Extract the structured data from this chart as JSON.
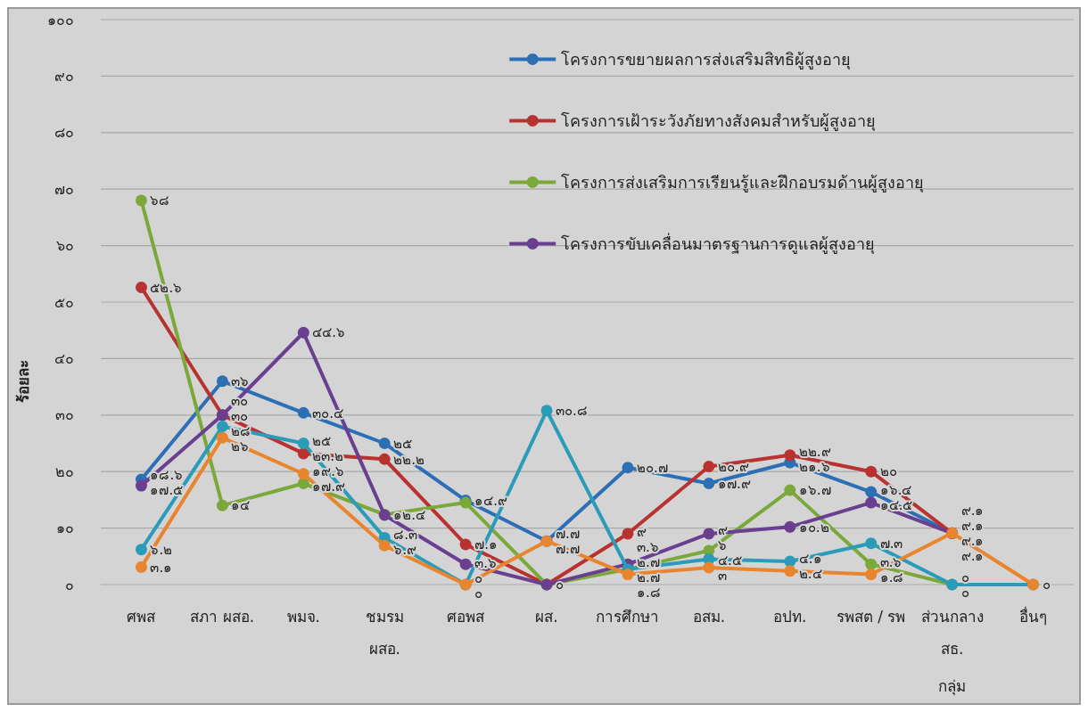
{
  "chart_data": {
    "type": "line",
    "ylabel": "ร้อยละ",
    "xlabel": "กลุ่ม",
    "categories": [
      "ศพส",
      "สภา ผสอ.",
      "พมจ.",
      "ชมรม ผสอ.",
      "ศอพส",
      "ผส.",
      "การศึกษา",
      "อสม.",
      "อปท.",
      "รพสต / รพ",
      "ส่วนกลาง สธ.",
      "อื่นๆ"
    ],
    "ylim": [
      0,
      100
    ],
    "yticks": [
      {
        "value": 0,
        "label": "๐"
      },
      {
        "value": 10,
        "label": "๑๐"
      },
      {
        "value": 20,
        "label": "๒๐"
      },
      {
        "value": 30,
        "label": "๓๐"
      },
      {
        "value": 40,
        "label": "๔๐"
      },
      {
        "value": 50,
        "label": "๕๐"
      },
      {
        "value": 60,
        "label": "๖๐"
      },
      {
        "value": 70,
        "label": "๗๐"
      },
      {
        "value": 80,
        "label": "๘๐"
      },
      {
        "value": 90,
        "label": "๙๐"
      },
      {
        "value": 100,
        "label": "๑๐๐"
      }
    ],
    "grid": "y",
    "legend": "top right",
    "marker": "circle",
    "series": [
      {
        "name": "โครงการขยายผลการส่งเสริมสิทธิผู้สูงอายุ",
        "color": "#2c6fb5",
        "values": [
          18.6,
          36,
          30.4,
          25,
          14.9,
          7.7,
          20.7,
          17.9,
          21.6,
          16.4,
          9.1,
          null
        ],
        "value_labels": [
          "๑๘.๖",
          "๓๖",
          "๓๐.๔",
          "๒๕",
          "๑๔.๙",
          "๗.๗",
          "๒๐.๗",
          "๑๗.๙",
          "๒๑.๖",
          "๑๖.๔",
          "๙.๑",
          null
        ]
      },
      {
        "name": "โครงการเฝ้าระวังภัยทางสังคมสำหรับผู้สูงอายุ",
        "color": "#b83230",
        "values": [
          52.6,
          30,
          23.2,
          22.2,
          7.1,
          0,
          9,
          20.9,
          22.9,
          20,
          9.1,
          null
        ],
        "value_labels": [
          "๕๒.๖",
          "๓๐",
          "๒๓.๒",
          "๒๒.๒",
          "๗.๑",
          null,
          "๙",
          "๒๐.๙",
          "๒๒.๙",
          "๒๐",
          "๙.๑",
          null
        ]
      },
      {
        "name": "โครงการส่งเสริมการเรียนรู้และฝึกอบรมด้านผู้สูงอายุ",
        "color": "#7ba83a",
        "values": [
          68,
          14,
          17.9,
          12.4,
          14.5,
          0,
          2.7,
          6,
          16.7,
          3.6,
          0,
          null
        ],
        "value_labels": [
          "๖๘",
          "๑๔",
          "๑๗.๙",
          "๑๒.๔",
          null,
          null,
          "๒.๗",
          "๖",
          "๑๖.๗",
          "๓.๖",
          "๐",
          null
        ]
      },
      {
        "name": "โครงการขับเคลื่อนมาตรฐานการดูแลผู้สูงอายุ",
        "color": "#6a3f90",
        "values": [
          17.5,
          30,
          44.6,
          12.3,
          3.6,
          0,
          3.6,
          9,
          10.2,
          14.5,
          9.1,
          null
        ],
        "value_labels": [
          "๑๗.๕",
          "๓๐",
          "๔๔.๖",
          null,
          "๓.๖",
          "๐",
          "๓.๖",
          "๙",
          "๑๐.๒",
          "๑๔.๕",
          "๙.๑",
          null
        ]
      },
      {
        "color": "#2a9bb8",
        "values": [
          6.2,
          28,
          25,
          8.3,
          0,
          30.8,
          2.7,
          4.5,
          4.1,
          7.3,
          0,
          0
        ],
        "value_labels": [
          "๖.๒",
          "๒๘",
          "๒๕",
          "๘.๓",
          "๐",
          "๓๐.๘",
          "๒.๗",
          "๔.๕",
          "๔.๑",
          "๗.๓",
          "๐",
          "๐"
        ]
      },
      {
        "color": "#e8852e",
        "values": [
          3.1,
          26,
          19.6,
          6.9,
          0,
          7.7,
          1.8,
          3,
          2.4,
          1.8,
          9.1,
          0
        ],
        "value_labels": [
          "๓.๑",
          "๒๖",
          "๑๙.๖",
          "๖.๙",
          "๐",
          "๗.๗",
          "๑.๘",
          "๓",
          "๒.๔",
          "๑.๘",
          "๙.๑",
          null
        ]
      }
    ]
  }
}
